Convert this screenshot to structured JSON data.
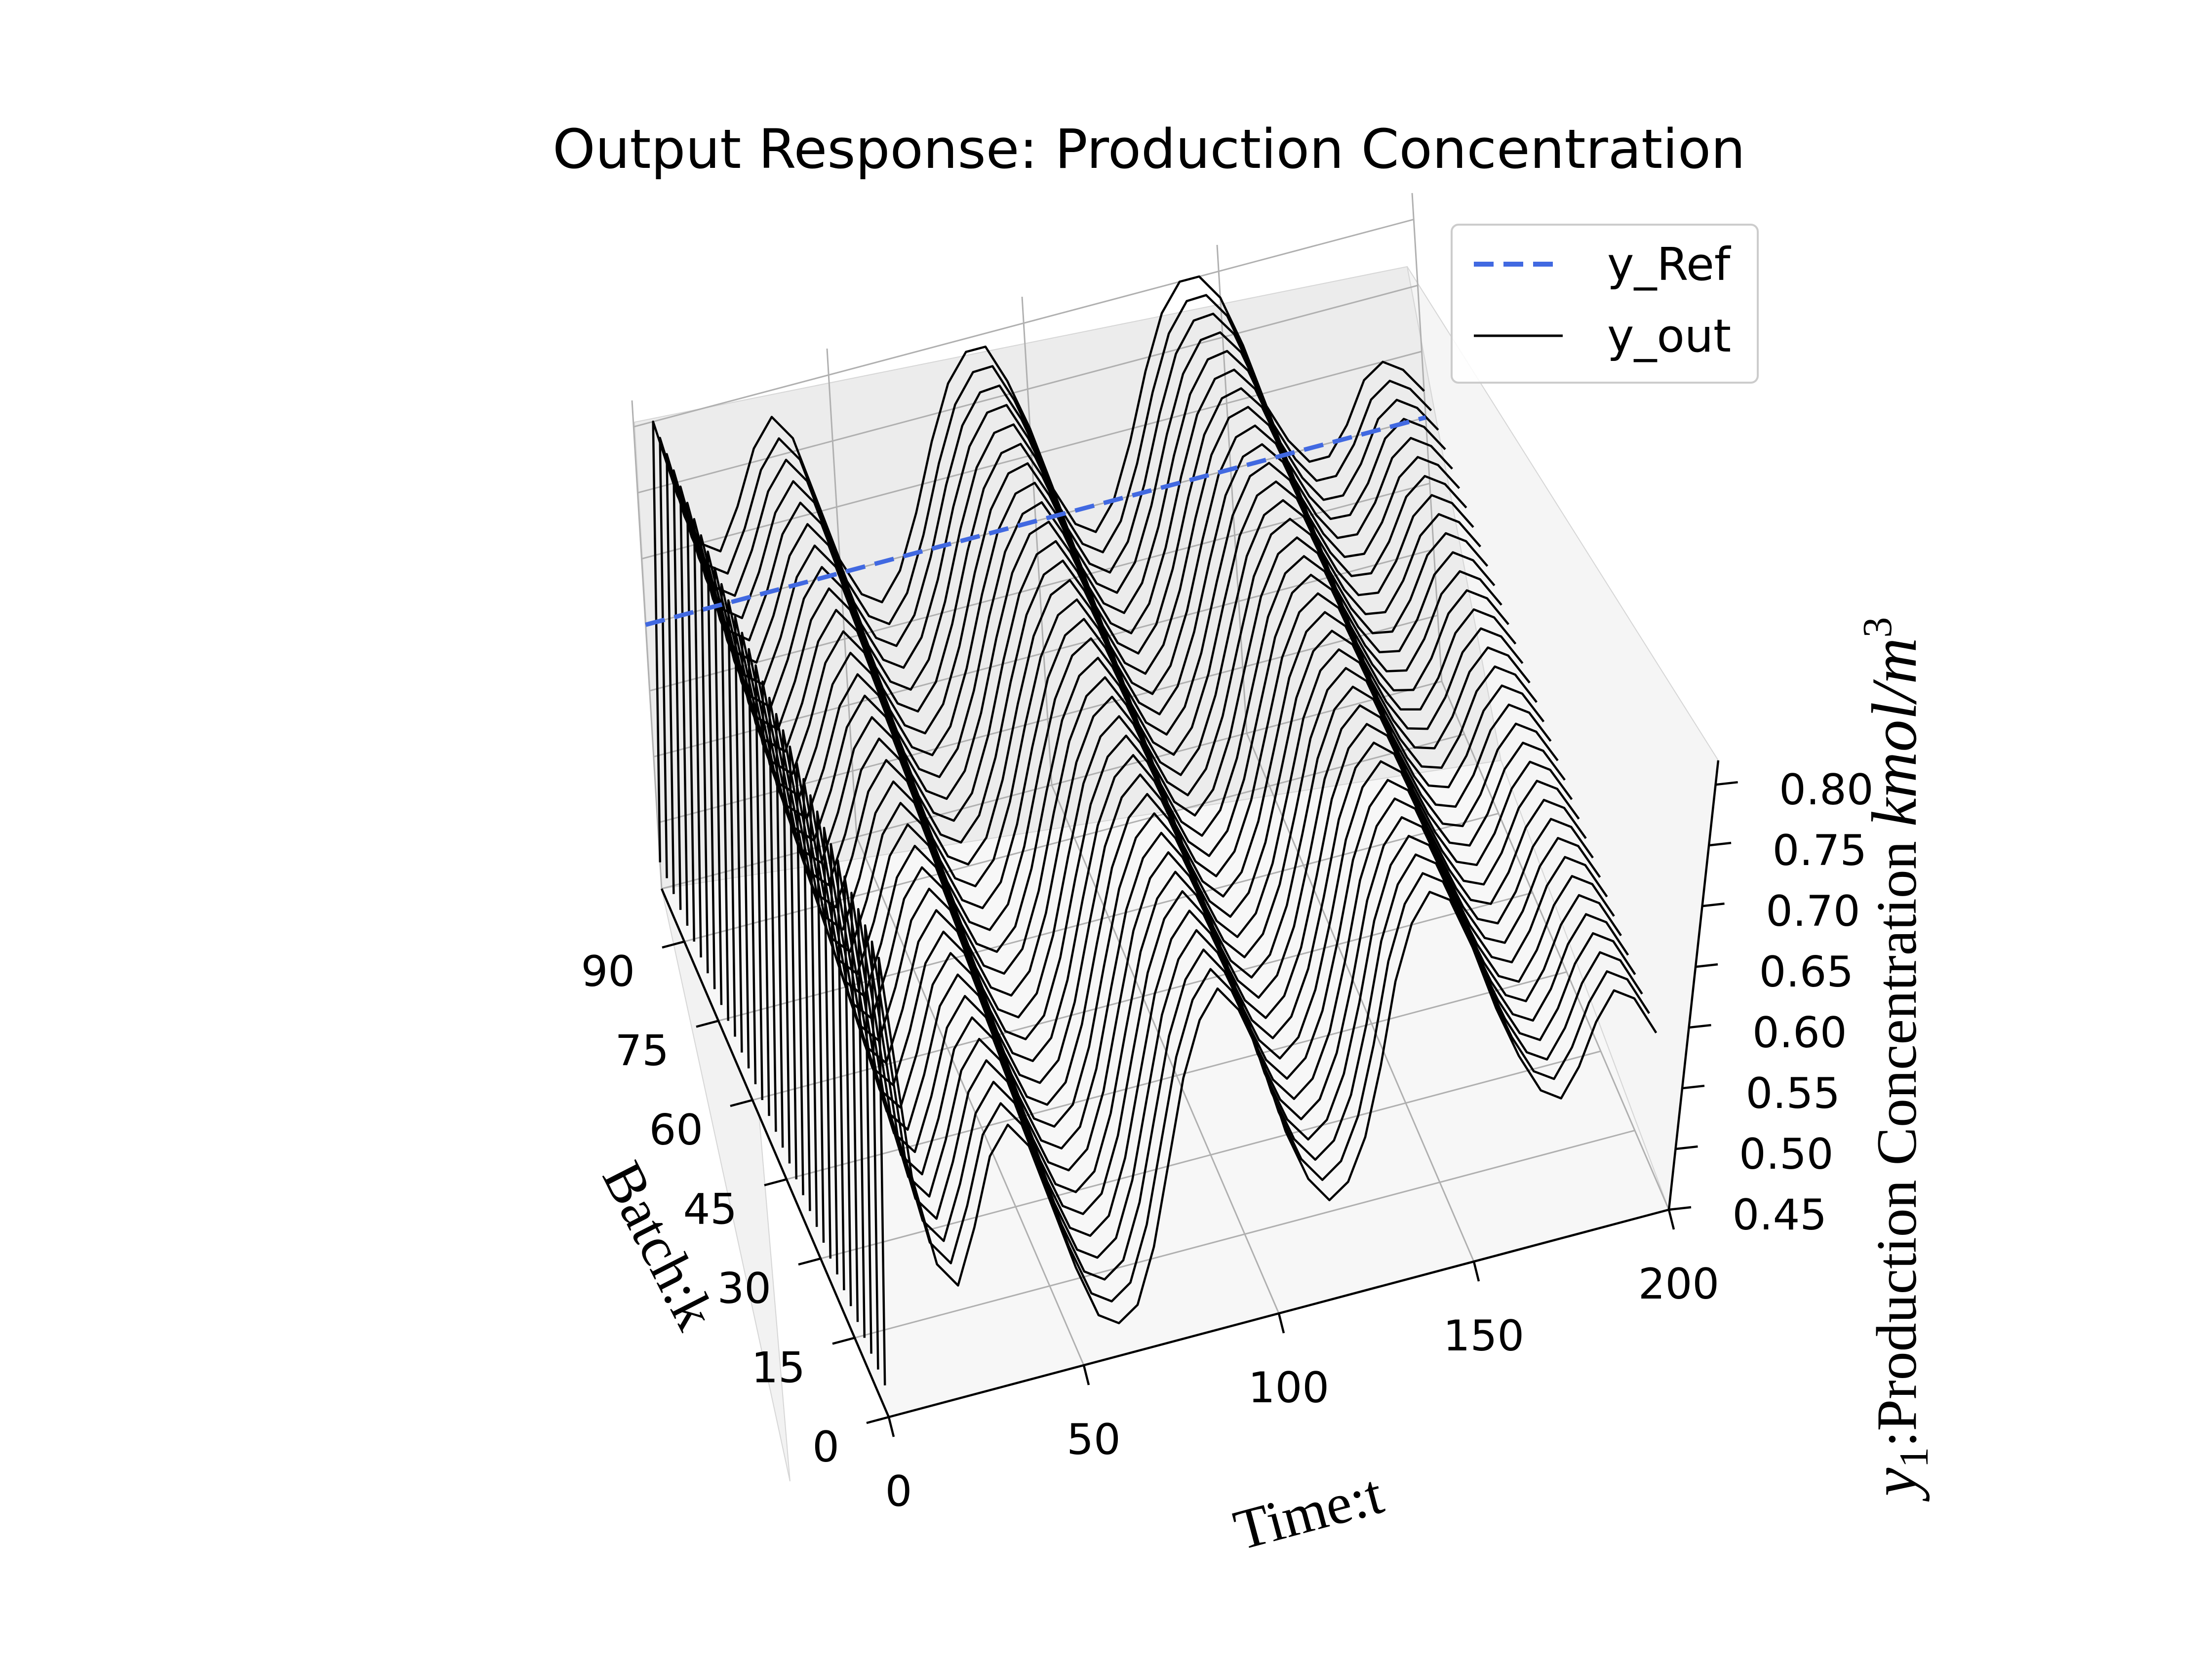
{
  "chart_data": {
    "type": "line-3d",
    "title": "Output Response: Production Concentration",
    "xlabel": "Time:t",
    "ylabel": "Batch:k",
    "zlabel_main": "y",
    "zlabel_sub": "1",
    "zlabel_text": ":Production Concentration ",
    "zlabel_unit_main": "kmol/m",
    "zlabel_unit_sup": "3",
    "xlim": [
      0,
      200
    ],
    "ylim": [
      0,
      100
    ],
    "zlim": [
      0.45,
      0.82
    ],
    "x_ticks": [
      0,
      50,
      100,
      150,
      200
    ],
    "y_ticks": [
      0,
      15,
      30,
      45,
      60,
      75,
      90
    ],
    "z_ticks": [
      0.45,
      0.5,
      0.55,
      0.6,
      0.65,
      0.7,
      0.75,
      0.8
    ],
    "x_tick_labels": [
      "0",
      "50",
      "100",
      "150",
      "200"
    ],
    "y_tick_labels": [
      "0",
      "15",
      "30",
      "45",
      "60",
      "75",
      "90"
    ],
    "z_tick_labels": [
      "0.45",
      "0.50",
      "0.55",
      "0.60",
      "0.65",
      "0.70",
      "0.75",
      "0.80"
    ],
    "grid": true,
    "legend_position": "top-right",
    "series": [
      {
        "name": "y_Ref",
        "style": "dashed",
        "color": "#4169e1",
        "batch": 100,
        "time": [
          0,
          200
        ],
        "value": [
          0.65,
          0.65
        ]
      },
      {
        "name": "y_out",
        "style": "solid",
        "color": "#000000",
        "batches": [
          1,
          4,
          7,
          10,
          13,
          16,
          19,
          22,
          25,
          28,
          31,
          34,
          37,
          40,
          43,
          46,
          49,
          52,
          55,
          58,
          61,
          64,
          67,
          70,
          73,
          76,
          79,
          82,
          85,
          88,
          91,
          94,
          97,
          100
        ],
        "time_points": [
          0,
          5,
          10,
          15,
          20,
          25,
          30,
          35,
          40,
          45,
          50,
          55,
          60,
          65,
          70,
          75,
          80,
          85,
          90,
          95,
          100,
          105,
          110,
          115,
          120,
          125,
          130,
          135,
          140,
          145,
          150,
          155,
          160,
          165,
          170,
          175,
          180,
          185,
          190,
          195,
          200
        ],
        "first_batch_profile": [
          0.47,
          0.79,
          0.62,
          0.55,
          0.53,
          0.57,
          0.62,
          0.64,
          0.62,
          0.57,
          0.52,
          0.48,
          0.47,
          0.48,
          0.52,
          0.58,
          0.64,
          0.68,
          0.7,
          0.68,
          0.64,
          0.58,
          0.54,
          0.52,
          0.53,
          0.56,
          0.61,
          0.67,
          0.71,
          0.73,
          0.72,
          0.68,
          0.63,
          0.59,
          0.56,
          0.55,
          0.57,
          0.6,
          0.62,
          0.61,
          0.58
        ],
        "last_batch_profile": [
          0.47,
          0.8,
          0.74,
          0.7,
          0.69,
          0.72,
          0.76,
          0.78,
          0.76,
          0.71,
          0.66,
          0.63,
          0.62,
          0.64,
          0.68,
          0.73,
          0.77,
          0.79,
          0.79,
          0.76,
          0.72,
          0.67,
          0.64,
          0.63,
          0.65,
          0.69,
          0.74,
          0.78,
          0.8,
          0.8,
          0.78,
          0.74,
          0.69,
          0.66,
          0.64,
          0.64,
          0.66,
          0.69,
          0.7,
          0.69,
          0.67
        ],
        "interpolation": "linear between first and last batch profile"
      }
    ]
  },
  "legend": {
    "items": [
      {
        "label": "y_Ref",
        "color": "#4169e1",
        "style": "dashed"
      },
      {
        "label": "y_out",
        "color": "#000000",
        "style": "solid"
      }
    ]
  }
}
